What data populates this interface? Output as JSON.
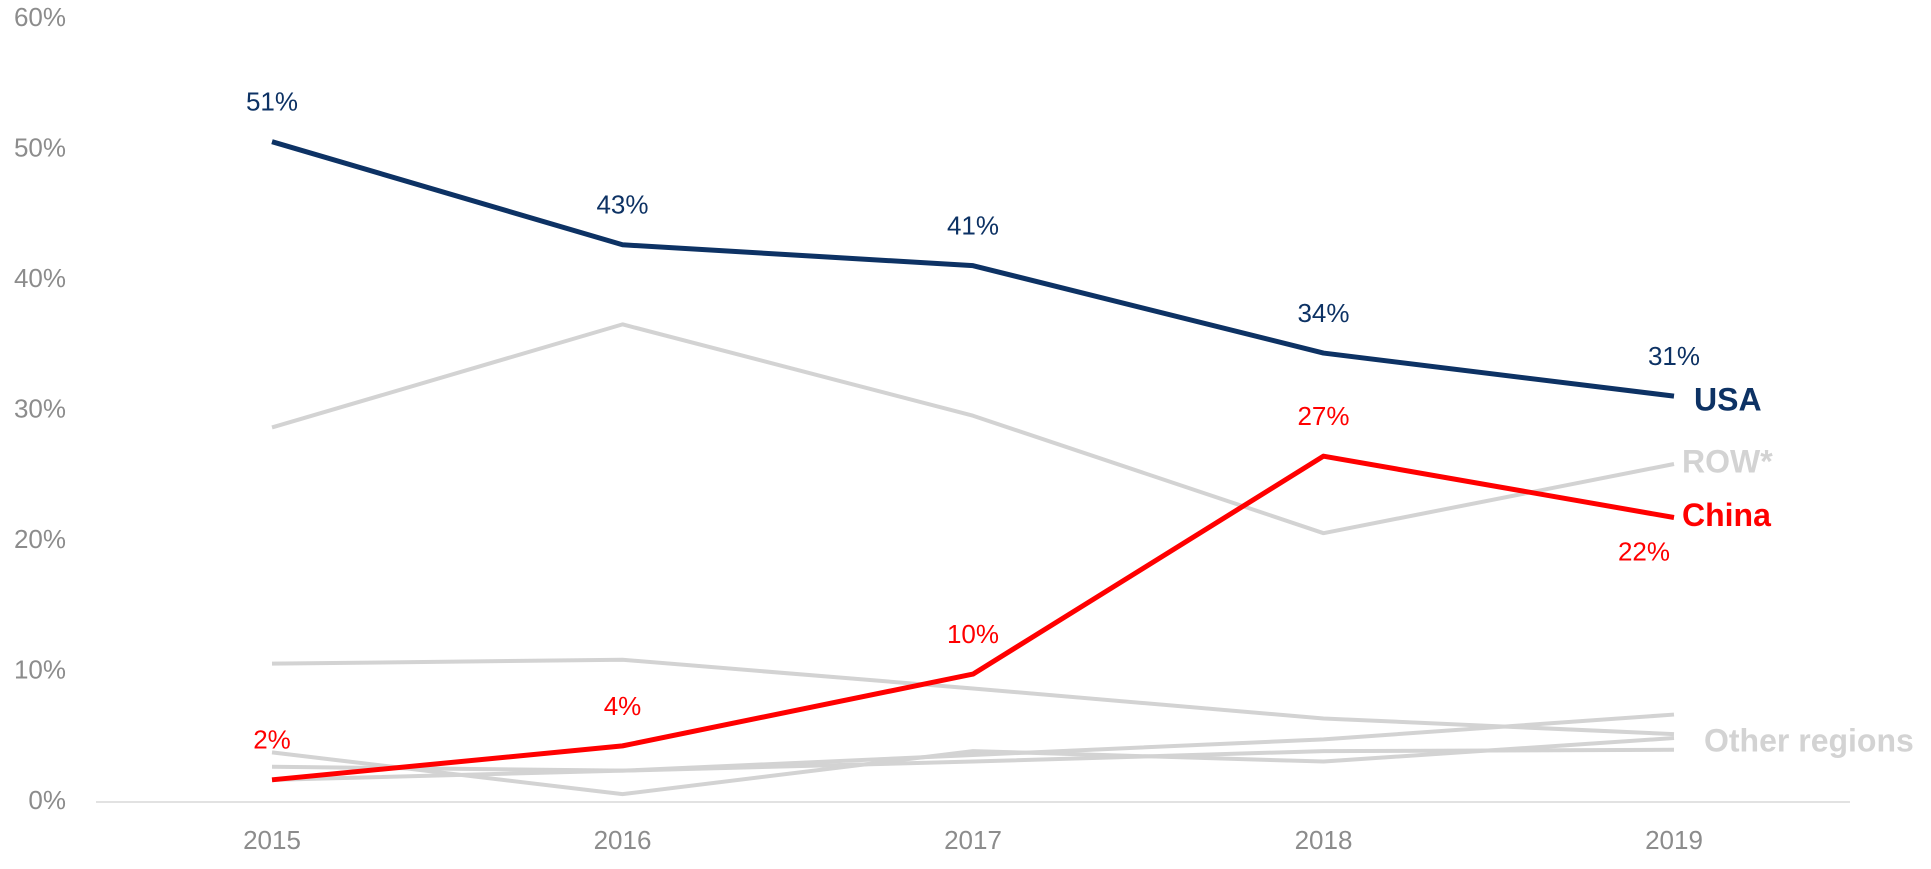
{
  "chart_data": {
    "type": "line",
    "categories": [
      "2015",
      "2016",
      "2017",
      "2018",
      "2019"
    ],
    "ylim": [
      0,
      60
    ],
    "yticks": [
      {
        "value": 0,
        "label": "0%"
      },
      {
        "value": 10,
        "label": "10%"
      },
      {
        "value": 20,
        "label": "20%"
      },
      {
        "value": 30,
        "label": "30%"
      },
      {
        "value": 40,
        "label": "40%"
      },
      {
        "value": 50,
        "label": "50%"
      },
      {
        "value": 60,
        "label": "60%"
      }
    ],
    "grid": false,
    "series": [
      {
        "color": "#d3d3d3",
        "values": [
          10.6,
          10.9,
          8.7,
          6.4,
          5.2
        ]
      },
      {
        "color": "#d3d3d3",
        "values": [
          3.8,
          0.6,
          3.9,
          3.1,
          4.9
        ]
      },
      {
        "color": "#d3d3d3",
        "values": [
          2.7,
          2.4,
          3.6,
          4.8,
          6.7
        ]
      },
      {
        "name": "Other regions",
        "color": "#d3d3d3",
        "values": [
          1.7,
          2.4,
          3.1,
          3.9,
          4.0
        ]
      },
      {
        "name": "ROW*",
        "color": "#d3d3d3",
        "values": [
          28.7,
          36.6,
          29.6,
          20.6,
          25.9
        ]
      },
      {
        "name": "China",
        "color": "#ff0000",
        "values": [
          1.7,
          4.3,
          9.8,
          26.5,
          21.8
        ],
        "value_labels": [
          "2%",
          "4%",
          "10%",
          "27%",
          "22%"
        ]
      },
      {
        "name": "USA",
        "color": "#0d3264",
        "values": [
          50.6,
          42.7,
          41.1,
          34.4,
          31.1
        ],
        "value_labels": [
          "51%",
          "43%",
          "41%",
          "34%",
          "31%"
        ]
      }
    ]
  }
}
